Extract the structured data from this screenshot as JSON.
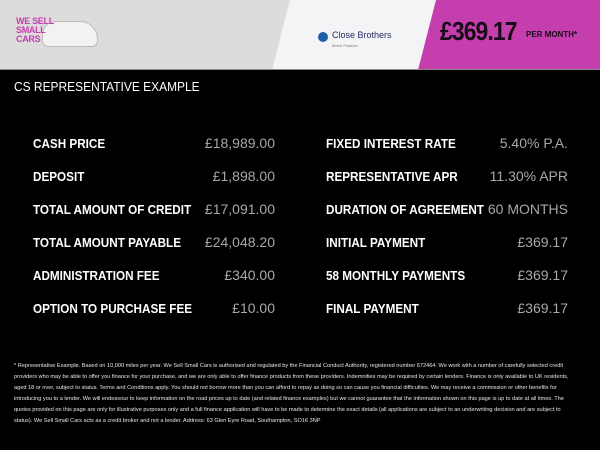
{
  "header": {
    "logo_text": [
      "WE SELL",
      "SMALL",
      "CARS"
    ],
    "lender_name": "Close Brothers",
    "lender_sub": "Motor Finance",
    "monthly_price": "£369.17",
    "per_month": "PER MONTH*",
    "colors": {
      "accent": "#c43fad",
      "header_bg": "#dcdcdc"
    }
  },
  "title": "CS REPRESENTATIVE EXAMPLE",
  "left": [
    {
      "label": "CASH PRICE",
      "value": "£18,989.00"
    },
    {
      "label": "DEPOSIT",
      "value": "£1,898.00"
    },
    {
      "label": "TOTAL AMOUNT OF CREDIT",
      "value": "£17,091.00"
    },
    {
      "label": "TOTAL AMOUNT PAYABLE",
      "value": "£24,048.20"
    },
    {
      "label": "ADMINISTRATION FEE",
      "value": "£340.00"
    },
    {
      "label": "OPTION TO PURCHASE FEE",
      "value": "£10.00"
    }
  ],
  "right": [
    {
      "label": "FIXED INTEREST RATE",
      "value": "5.40% P.A."
    },
    {
      "label": "REPRESENTATIVE APR",
      "value": "11.30% APR"
    },
    {
      "label": "DURATION OF AGREEMENT",
      "value": "60 MONTHS"
    },
    {
      "label": "INITIAL PAYMENT",
      "value": "£369.17"
    },
    {
      "label": "58 MONTHLY PAYMENTS",
      "value": "£369.17"
    },
    {
      "label": "FINAL PAYMENT",
      "value": "£369.17"
    }
  ],
  "disclaimer": "* Representative Example. Based on 10,000 miles per year. We Sell Small Cars is authorised and regulated by the Financial Conduct Authority, registered number 672464. We work with a number of carefully selected credit providers who may be able to offer you finance for your purchase, and we are only able to offer finance products from these providers. Indemnities may be required by certain lenders. Finance is only available to UK residents, aged 18 or over, subject to status. Terms and Conditions apply. You should not borrow more than you can afford to repay as doing so can cause you financial difficulties. We may receive a commission or other benefits for introducing you to a lender. We will endeavour to keep information on the road prices up to date (and related finance examples) but we cannot guarantee that the information shown on this page is up to date at all times. The quotes provided on this page are only for illustrative purposes only and a full finance application will have to be made to determine the exact details (all applications are subject to an underwriting decision and are subject to status). We Sell Small Cars acts as a credit broker and not a lender. Address: 63 Glen Eyre Road, Southampton, SO16 3NP"
}
